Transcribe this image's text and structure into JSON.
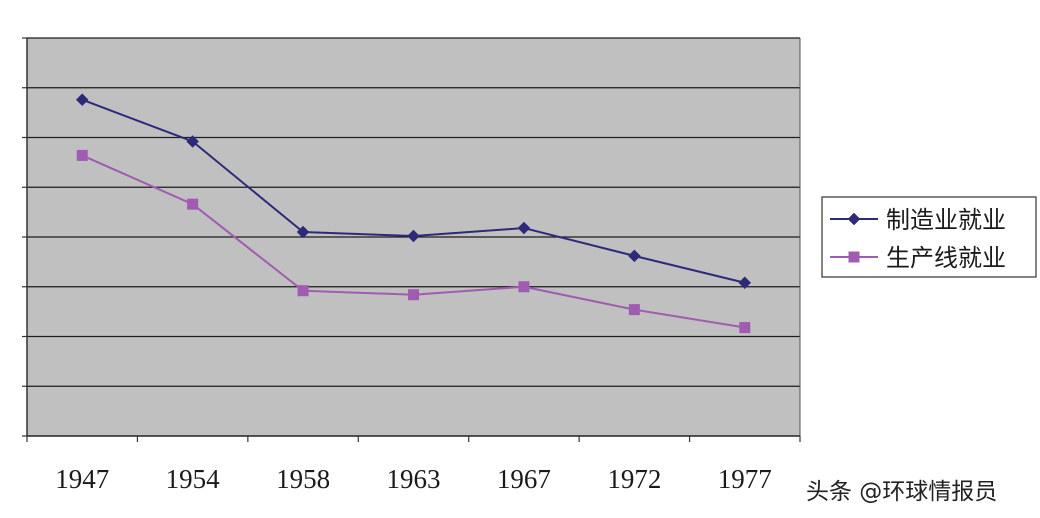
{
  "chart_data": {
    "type": "line",
    "title": "",
    "xlabel": "",
    "ylabel": "",
    "categories": [
      "1947",
      "1954",
      "1958",
      "1963",
      "1967",
      "1972",
      "1977"
    ],
    "ylim": [
      0,
      40
    ],
    "ytick_count": 9,
    "grid": true,
    "legend_position": "right",
    "plot_background": "#c0c0c0",
    "series": [
      {
        "name": "制造业就业",
        "values": [
          33.8,
          29.6,
          20.5,
          20.1,
          20.9,
          18.1,
          15.4
        ],
        "color": "#2e2a7a",
        "marker": "diamond"
      },
      {
        "name": "生产线就业",
        "values": [
          28.2,
          23.3,
          14.6,
          14.2,
          15.0,
          12.7,
          10.9
        ],
        "color": "#a05cb0",
        "marker": "square"
      }
    ]
  },
  "watermark": {
    "text": "头条 @环球情报员"
  }
}
